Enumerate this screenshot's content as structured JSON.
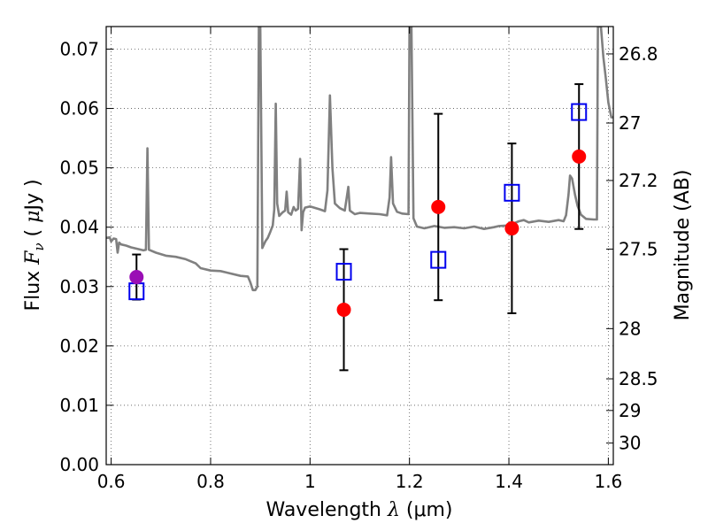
{
  "chart_data": {
    "type": "scatter",
    "xlabel": "Wavelength  λ (μm)",
    "xlabel_parts": {
      "text": "Wavelength  ",
      "sym": "λ",
      "unit": " (μm)"
    },
    "ylabel": "Flux  Fν  ( μJy )",
    "ylabel_parts": {
      "text": "Flux  ",
      "sym": "F",
      "sub": "ν",
      "open": "  ( ",
      "mu": "μ",
      "unit": "Jy )"
    },
    "y2label": "Magnitude (AB)",
    "xlim": [
      0.59,
      1.61
    ],
    "ylim": [
      0.0,
      0.0738
    ],
    "grid": true,
    "x_ticks": [
      {
        "v": 0.6,
        "label": "0.6"
      },
      {
        "v": 0.8,
        "label": "0.8"
      },
      {
        "v": 1.0,
        "label": "1"
      },
      {
        "v": 1.2,
        "label": "1.2"
      },
      {
        "v": 1.4,
        "label": "1.4"
      },
      {
        "v": 1.6,
        "label": "1.6"
      }
    ],
    "y_ticks": [
      {
        "v": 0.0,
        "label": "0.00"
      },
      {
        "v": 0.01,
        "label": "0.01"
      },
      {
        "v": 0.02,
        "label": "0.02"
      },
      {
        "v": 0.03,
        "label": "0.03"
      },
      {
        "v": 0.04,
        "label": "0.04"
      },
      {
        "v": 0.05,
        "label": "0.05"
      },
      {
        "v": 0.06,
        "label": "0.06"
      },
      {
        "v": 0.07,
        "label": "0.07"
      }
    ],
    "mag_ticks": [
      {
        "v": 26.8,
        "label": "26.8"
      },
      {
        "v": 27.0,
        "label": "27"
      },
      {
        "v": 27.2,
        "label": "27.2"
      },
      {
        "v": 27.5,
        "label": "27.5"
      },
      {
        "v": 28.0,
        "label": "28"
      },
      {
        "v": 28.5,
        "label": "28.5"
      },
      {
        "v": 29.0,
        "label": "29"
      },
      {
        "v": 30.0,
        "label": "30"
      }
    ],
    "observed": [
      {
        "x": 0.651,
        "y": 0.0316,
        "err": 0.0038,
        "color": "#9a0fb5"
      },
      {
        "x": 1.068,
        "y": 0.0261,
        "err": 0.0102,
        "color": "#ff0000"
      },
      {
        "x": 1.258,
        "y": 0.0434,
        "err": 0.0157,
        "color": "#ff0000"
      },
      {
        "x": 1.406,
        "y": 0.0398,
        "err": 0.0143,
        "color": "#ff0000"
      },
      {
        "x": 1.541,
        "y": 0.0519,
        "err": 0.0122,
        "color": "#ff0000"
      }
    ],
    "model_points": [
      {
        "x": 0.651,
        "y": 0.0292
      },
      {
        "x": 1.068,
        "y": 0.0325
      },
      {
        "x": 1.258,
        "y": 0.0345
      },
      {
        "x": 1.406,
        "y": 0.0458
      },
      {
        "x": 1.541,
        "y": 0.0594
      }
    ],
    "sed_line": [
      [
        0.59,
        0.0382
      ],
      [
        0.597,
        0.0383
      ],
      [
        0.6,
        0.0376
      ],
      [
        0.605,
        0.0381
      ],
      [
        0.61,
        0.038
      ],
      [
        0.613,
        0.0357
      ],
      [
        0.616,
        0.0374
      ],
      [
        0.62,
        0.0371
      ],
      [
        0.63,
        0.0369
      ],
      [
        0.64,
        0.0366
      ],
      [
        0.655,
        0.0363
      ],
      [
        0.665,
        0.0361
      ],
      [
        0.67,
        0.0362
      ],
      [
        0.673,
        0.0533
      ],
      [
        0.676,
        0.0362
      ],
      [
        0.69,
        0.0357
      ],
      [
        0.71,
        0.0352
      ],
      [
        0.73,
        0.035
      ],
      [
        0.75,
        0.0346
      ],
      [
        0.77,
        0.0339
      ],
      [
        0.78,
        0.0331
      ],
      [
        0.8,
        0.0327
      ],
      [
        0.82,
        0.0326
      ],
      [
        0.84,
        0.0322
      ],
      [
        0.86,
        0.0318
      ],
      [
        0.875,
        0.0317
      ],
      [
        0.88,
        0.0307
      ],
      [
        0.885,
        0.0294
      ],
      [
        0.89,
        0.0294
      ],
      [
        0.894,
        0.03
      ],
      [
        0.897,
        0.0738
      ],
      [
        0.9,
        0.0738
      ],
      [
        0.904,
        0.0365
      ],
      [
        0.91,
        0.0376
      ],
      [
        0.915,
        0.0382
      ],
      [
        0.92,
        0.0392
      ],
      [
        0.925,
        0.0403
      ],
      [
        0.928,
        0.043
      ],
      [
        0.931,
        0.0608
      ],
      [
        0.934,
        0.044
      ],
      [
        0.938,
        0.0419
      ],
      [
        0.945,
        0.0425
      ],
      [
        0.95,
        0.0428
      ],
      [
        0.953,
        0.046
      ],
      [
        0.956,
        0.0425
      ],
      [
        0.962,
        0.0421
      ],
      [
        0.967,
        0.0434
      ],
      [
        0.971,
        0.0428
      ],
      [
        0.976,
        0.0431
      ],
      [
        0.98,
        0.0515
      ],
      [
        0.983,
        0.0395
      ],
      [
        0.986,
        0.0425
      ],
      [
        0.99,
        0.0433
      ],
      [
        1.0,
        0.0435
      ],
      [
        1.02,
        0.043
      ],
      [
        1.03,
        0.0427
      ],
      [
        1.035,
        0.0462
      ],
      [
        1.04,
        0.0622
      ],
      [
        1.045,
        0.05
      ],
      [
        1.05,
        0.044
      ],
      [
        1.06,
        0.0432
      ],
      [
        1.07,
        0.0428
      ],
      [
        1.077,
        0.0468
      ],
      [
        1.08,
        0.0428
      ],
      [
        1.09,
        0.0422
      ],
      [
        1.1,
        0.0424
      ],
      [
        1.12,
        0.0423
      ],
      [
        1.14,
        0.0422
      ],
      [
        1.155,
        0.042
      ],
      [
        1.16,
        0.045
      ],
      [
        1.163,
        0.0518
      ],
      [
        1.167,
        0.044
      ],
      [
        1.175,
        0.0426
      ],
      [
        1.185,
        0.0423
      ],
      [
        1.198,
        0.0422
      ],
      [
        1.2,
        0.0738
      ],
      [
        1.204,
        0.0738
      ],
      [
        1.208,
        0.0415
      ],
      [
        1.215,
        0.0401
      ],
      [
        1.23,
        0.0398
      ],
      [
        1.25,
        0.0402
      ],
      [
        1.27,
        0.0399
      ],
      [
        1.29,
        0.04
      ],
      [
        1.31,
        0.0398
      ],
      [
        1.33,
        0.0401
      ],
      [
        1.35,
        0.0397
      ],
      [
        1.37,
        0.04
      ],
      [
        1.38,
        0.0402
      ],
      [
        1.4,
        0.0403
      ],
      [
        1.42,
        0.041
      ],
      [
        1.43,
        0.0412
      ],
      [
        1.44,
        0.0408
      ],
      [
        1.46,
        0.0411
      ],
      [
        1.48,
        0.0409
      ],
      [
        1.5,
        0.0412
      ],
      [
        1.51,
        0.041
      ],
      [
        1.515,
        0.042
      ],
      [
        1.52,
        0.0455
      ],
      [
        1.523,
        0.0487
      ],
      [
        1.527,
        0.0482
      ],
      [
        1.533,
        0.0455
      ],
      [
        1.538,
        0.0436
      ],
      [
        1.545,
        0.0421
      ],
      [
        1.555,
        0.0414
      ],
      [
        1.57,
        0.0413
      ],
      [
        1.577,
        0.0413
      ],
      [
        1.579,
        0.0738
      ],
      [
        1.585,
        0.0738
      ],
      [
        1.59,
        0.0686
      ],
      [
        1.595,
        0.065
      ],
      [
        1.6,
        0.061
      ],
      [
        1.606,
        0.0585
      ],
      [
        1.61,
        0.0585
      ]
    ]
  }
}
